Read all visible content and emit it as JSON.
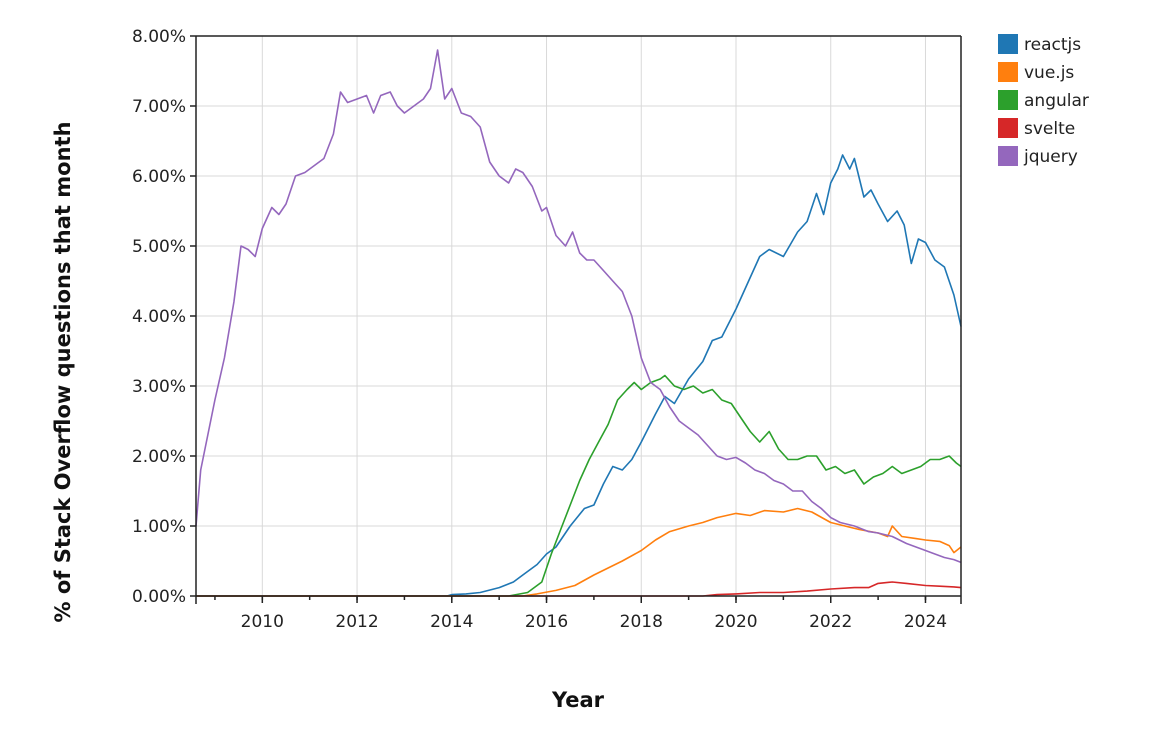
{
  "chart_data": {
    "type": "line",
    "title": "",
    "xlabel": "Year",
    "ylabel": "% of Stack Overflow questions that month",
    "x_ticks": [
      "2010",
      "2012",
      "2014",
      "2016",
      "2018",
      "2020",
      "2022",
      "2024"
    ],
    "y_ticks": [
      "0.00%",
      "1.00%",
      "2.00%",
      "3.00%",
      "4.00%",
      "5.00%",
      "6.00%",
      "7.00%",
      "8.00%"
    ],
    "xlim": [
      2008.6,
      2024.75
    ],
    "ylim": [
      0,
      8
    ],
    "grid": true,
    "legend_position": "top-right",
    "series": [
      {
        "name": "reactjs",
        "color": "#1f77b4",
        "points": [
          [
            2008.6,
            0
          ],
          [
            2013.9,
            0
          ],
          [
            2014.0,
            0.02
          ],
          [
            2014.3,
            0.03
          ],
          [
            2014.6,
            0.05
          ],
          [
            2015.0,
            0.12
          ],
          [
            2015.3,
            0.2
          ],
          [
            2015.5,
            0.3
          ],
          [
            2015.8,
            0.45
          ],
          [
            2016.0,
            0.6
          ],
          [
            2016.2,
            0.7
          ],
          [
            2016.5,
            1.0
          ],
          [
            2016.8,
            1.25
          ],
          [
            2017.0,
            1.3
          ],
          [
            2017.2,
            1.6
          ],
          [
            2017.4,
            1.85
          ],
          [
            2017.6,
            1.8
          ],
          [
            2017.8,
            1.95
          ],
          [
            2018.0,
            2.2
          ],
          [
            2018.3,
            2.6
          ],
          [
            2018.5,
            2.85
          ],
          [
            2018.7,
            2.75
          ],
          [
            2019.0,
            3.1
          ],
          [
            2019.3,
            3.35
          ],
          [
            2019.5,
            3.65
          ],
          [
            2019.7,
            3.7
          ],
          [
            2020.0,
            4.1
          ],
          [
            2020.3,
            4.55
          ],
          [
            2020.5,
            4.85
          ],
          [
            2020.7,
            4.95
          ],
          [
            2021.0,
            4.85
          ],
          [
            2021.3,
            5.2
          ],
          [
            2021.5,
            5.35
          ],
          [
            2021.7,
            5.75
          ],
          [
            2021.85,
            5.45
          ],
          [
            2022.0,
            5.9
          ],
          [
            2022.15,
            6.1
          ],
          [
            2022.25,
            6.3
          ],
          [
            2022.4,
            6.1
          ],
          [
            2022.5,
            6.25
          ],
          [
            2022.7,
            5.7
          ],
          [
            2022.85,
            5.8
          ],
          [
            2023.0,
            5.6
          ],
          [
            2023.2,
            5.35
          ],
          [
            2023.4,
            5.5
          ],
          [
            2023.55,
            5.3
          ],
          [
            2023.7,
            4.75
          ],
          [
            2023.85,
            5.1
          ],
          [
            2024.0,
            5.05
          ],
          [
            2024.2,
            4.8
          ],
          [
            2024.4,
            4.7
          ],
          [
            2024.6,
            4.3
          ],
          [
            2024.75,
            3.85
          ]
        ]
      },
      {
        "name": "vue.js",
        "color": "#ff7f0e",
        "points": [
          [
            2008.6,
            0
          ],
          [
            2015.5,
            0
          ],
          [
            2015.8,
            0.03
          ],
          [
            2016.2,
            0.08
          ],
          [
            2016.6,
            0.15
          ],
          [
            2017.0,
            0.3
          ],
          [
            2017.3,
            0.4
          ],
          [
            2017.6,
            0.5
          ],
          [
            2018.0,
            0.65
          ],
          [
            2018.3,
            0.8
          ],
          [
            2018.6,
            0.92
          ],
          [
            2019.0,
            1.0
          ],
          [
            2019.3,
            1.05
          ],
          [
            2019.6,
            1.12
          ],
          [
            2020.0,
            1.18
          ],
          [
            2020.3,
            1.15
          ],
          [
            2020.6,
            1.22
          ],
          [
            2021.0,
            1.2
          ],
          [
            2021.3,
            1.25
          ],
          [
            2021.6,
            1.2
          ],
          [
            2022.0,
            1.05
          ],
          [
            2022.3,
            1.0
          ],
          [
            2022.6,
            0.95
          ],
          [
            2023.0,
            0.9
          ],
          [
            2023.2,
            0.85
          ],
          [
            2023.3,
            1.0
          ],
          [
            2023.5,
            0.85
          ],
          [
            2023.8,
            0.82
          ],
          [
            2024.0,
            0.8
          ],
          [
            2024.3,
            0.78
          ],
          [
            2024.5,
            0.72
          ],
          [
            2024.6,
            0.62
          ],
          [
            2024.75,
            0.7
          ]
        ]
      },
      {
        "name": "angular",
        "color": "#2ca02c",
        "points": [
          [
            2008.6,
            0
          ],
          [
            2015.2,
            0
          ],
          [
            2015.6,
            0.05
          ],
          [
            2015.9,
            0.2
          ],
          [
            2016.1,
            0.6
          ],
          [
            2016.3,
            0.95
          ],
          [
            2016.5,
            1.3
          ],
          [
            2016.7,
            1.65
          ],
          [
            2016.9,
            1.95
          ],
          [
            2017.1,
            2.2
          ],
          [
            2017.3,
            2.45
          ],
          [
            2017.5,
            2.8
          ],
          [
            2017.7,
            2.95
          ],
          [
            2017.85,
            3.05
          ],
          [
            2018.0,
            2.95
          ],
          [
            2018.2,
            3.05
          ],
          [
            2018.4,
            3.1
          ],
          [
            2018.5,
            3.15
          ],
          [
            2018.7,
            3.0
          ],
          [
            2018.9,
            2.95
          ],
          [
            2019.1,
            3.0
          ],
          [
            2019.3,
            2.9
          ],
          [
            2019.5,
            2.95
          ],
          [
            2019.7,
            2.8
          ],
          [
            2019.9,
            2.75
          ],
          [
            2020.1,
            2.55
          ],
          [
            2020.3,
            2.35
          ],
          [
            2020.5,
            2.2
          ],
          [
            2020.7,
            2.35
          ],
          [
            2020.9,
            2.1
          ],
          [
            2021.1,
            1.95
          ],
          [
            2021.3,
            1.95
          ],
          [
            2021.5,
            2.0
          ],
          [
            2021.7,
            2.0
          ],
          [
            2021.9,
            1.8
          ],
          [
            2022.1,
            1.85
          ],
          [
            2022.3,
            1.75
          ],
          [
            2022.5,
            1.8
          ],
          [
            2022.7,
            1.6
          ],
          [
            2022.9,
            1.7
          ],
          [
            2023.1,
            1.75
          ],
          [
            2023.3,
            1.85
          ],
          [
            2023.5,
            1.75
          ],
          [
            2023.7,
            1.8
          ],
          [
            2023.9,
            1.85
          ],
          [
            2024.1,
            1.95
          ],
          [
            2024.3,
            1.95
          ],
          [
            2024.5,
            2.0
          ],
          [
            2024.65,
            1.9
          ],
          [
            2024.75,
            1.85
          ]
        ]
      },
      {
        "name": "svelte",
        "color": "#d62728",
        "points": [
          [
            2008.6,
            0
          ],
          [
            2019.3,
            0
          ],
          [
            2019.6,
            0.02
          ],
          [
            2020.0,
            0.03
          ],
          [
            2020.5,
            0.05
          ],
          [
            2021.0,
            0.05
          ],
          [
            2021.5,
            0.07
          ],
          [
            2022.0,
            0.1
          ],
          [
            2022.5,
            0.12
          ],
          [
            2022.8,
            0.12
          ],
          [
            2023.0,
            0.18
          ],
          [
            2023.3,
            0.2
          ],
          [
            2023.6,
            0.18
          ],
          [
            2024.0,
            0.15
          ],
          [
            2024.3,
            0.14
          ],
          [
            2024.6,
            0.13
          ],
          [
            2024.75,
            0.12
          ]
        ]
      },
      {
        "name": "jquery",
        "color": "#9467bd",
        "points": [
          [
            2008.6,
            1.0
          ],
          [
            2008.7,
            1.8
          ],
          [
            2008.85,
            2.3
          ],
          [
            2009.0,
            2.8
          ],
          [
            2009.2,
            3.4
          ],
          [
            2009.4,
            4.2
          ],
          [
            2009.55,
            5.0
          ],
          [
            2009.7,
            4.95
          ],
          [
            2009.85,
            4.85
          ],
          [
            2010.0,
            5.25
          ],
          [
            2010.2,
            5.55
          ],
          [
            2010.35,
            5.45
          ],
          [
            2010.5,
            5.6
          ],
          [
            2010.7,
            6.0
          ],
          [
            2010.9,
            6.05
          ],
          [
            2011.1,
            6.15
          ],
          [
            2011.3,
            6.25
          ],
          [
            2011.5,
            6.6
          ],
          [
            2011.65,
            7.2
          ],
          [
            2011.8,
            7.05
          ],
          [
            2012.0,
            7.1
          ],
          [
            2012.2,
            7.15
          ],
          [
            2012.35,
            6.9
          ],
          [
            2012.5,
            7.15
          ],
          [
            2012.7,
            7.2
          ],
          [
            2012.85,
            7.0
          ],
          [
            2013.0,
            6.9
          ],
          [
            2013.2,
            7.0
          ],
          [
            2013.4,
            7.1
          ],
          [
            2013.55,
            7.25
          ],
          [
            2013.7,
            7.8
          ],
          [
            2013.85,
            7.1
          ],
          [
            2014.0,
            7.25
          ],
          [
            2014.2,
            6.9
          ],
          [
            2014.4,
            6.85
          ],
          [
            2014.6,
            6.7
          ],
          [
            2014.8,
            6.2
          ],
          [
            2015.0,
            6.0
          ],
          [
            2015.2,
            5.9
          ],
          [
            2015.35,
            6.1
          ],
          [
            2015.5,
            6.05
          ],
          [
            2015.7,
            5.85
          ],
          [
            2015.9,
            5.5
          ],
          [
            2016.0,
            5.55
          ],
          [
            2016.2,
            5.15
          ],
          [
            2016.4,
            5.0
          ],
          [
            2016.55,
            5.2
          ],
          [
            2016.7,
            4.9
          ],
          [
            2016.85,
            4.8
          ],
          [
            2017.0,
            4.8
          ],
          [
            2017.2,
            4.65
          ],
          [
            2017.4,
            4.5
          ],
          [
            2017.6,
            4.35
          ],
          [
            2017.8,
            4.0
          ],
          [
            2018.0,
            3.4
          ],
          [
            2018.2,
            3.05
          ],
          [
            2018.4,
            2.95
          ],
          [
            2018.6,
            2.7
          ],
          [
            2018.8,
            2.5
          ],
          [
            2019.0,
            2.4
          ],
          [
            2019.2,
            2.3
          ],
          [
            2019.4,
            2.15
          ],
          [
            2019.6,
            2.0
          ],
          [
            2019.8,
            1.95
          ],
          [
            2020.0,
            1.98
          ],
          [
            2020.2,
            1.9
          ],
          [
            2020.4,
            1.8
          ],
          [
            2020.6,
            1.75
          ],
          [
            2020.8,
            1.65
          ],
          [
            2021.0,
            1.6
          ],
          [
            2021.2,
            1.5
          ],
          [
            2021.4,
            1.5
          ],
          [
            2021.6,
            1.35
          ],
          [
            2021.8,
            1.25
          ],
          [
            2022.0,
            1.12
          ],
          [
            2022.2,
            1.05
          ],
          [
            2022.5,
            1.0
          ],
          [
            2022.8,
            0.92
          ],
          [
            2023.0,
            0.9
          ],
          [
            2023.3,
            0.85
          ],
          [
            2023.6,
            0.75
          ],
          [
            2023.8,
            0.7
          ],
          [
            2024.0,
            0.65
          ],
          [
            2024.2,
            0.6
          ],
          [
            2024.4,
            0.55
          ],
          [
            2024.6,
            0.52
          ],
          [
            2024.75,
            0.48
          ]
        ]
      }
    ]
  }
}
